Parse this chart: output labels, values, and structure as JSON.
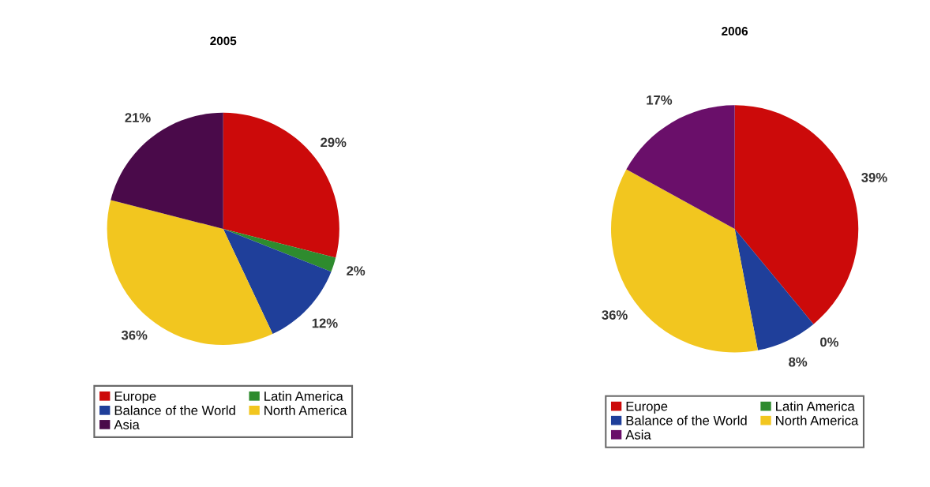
{
  "chart_data": [
    {
      "type": "pie",
      "title": "2005",
      "categories": [
        "Europe",
        "Latin America",
        "Balance of the World",
        "North America",
        "Asia"
      ],
      "values": [
        29,
        2,
        12,
        36,
        21
      ],
      "value_labels": [
        "29%",
        "2%",
        "12%",
        "36%",
        "21%"
      ],
      "colors": [
        "#cc0a0a",
        "#2e8b2e",
        "#1f3f9a",
        "#f2c61f",
        "#4a0a4a"
      ],
      "legend": "bottom"
    },
    {
      "type": "pie",
      "title": "2006",
      "categories": [
        "Europe",
        "Latin America",
        "Balance of the World",
        "North America",
        "Asia"
      ],
      "values": [
        39,
        0,
        8,
        36,
        17
      ],
      "value_labels": [
        "39%",
        "0%",
        "8%",
        "36%",
        "17%"
      ],
      "colors": [
        "#cc0a0a",
        "#2e8b2e",
        "#1f3f9a",
        "#f2c61f",
        "#6a0f6a"
      ],
      "legend": "bottom"
    }
  ]
}
